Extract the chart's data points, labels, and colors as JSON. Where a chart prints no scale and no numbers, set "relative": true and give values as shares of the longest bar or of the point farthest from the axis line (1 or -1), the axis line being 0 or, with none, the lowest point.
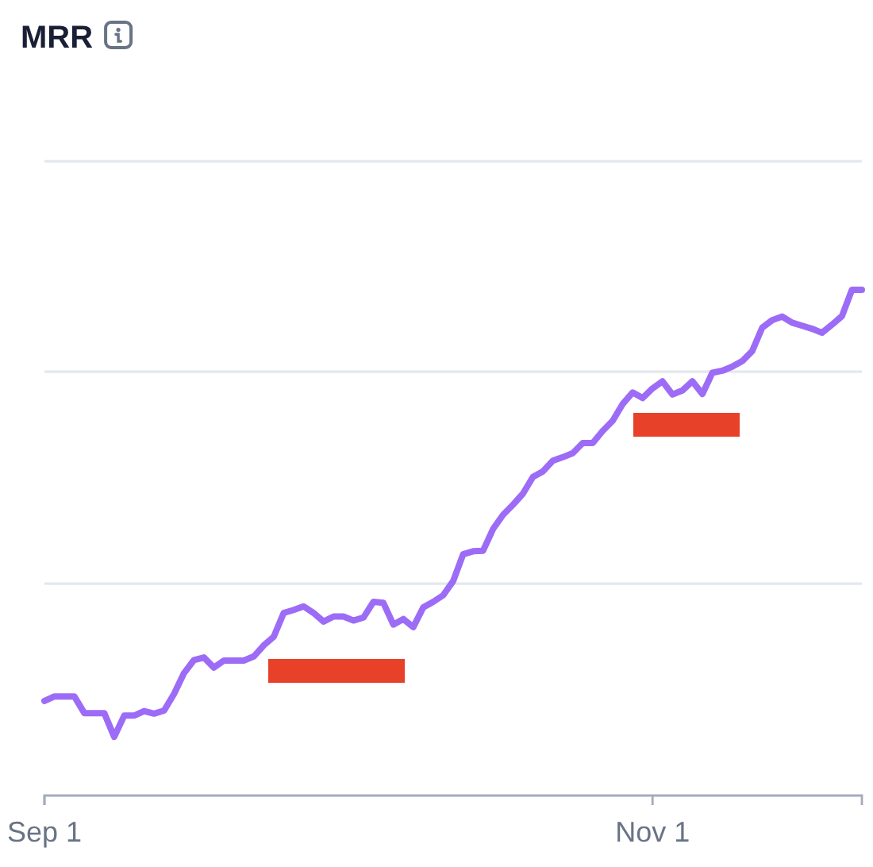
{
  "chart_data": {
    "type": "line",
    "title": "MRR",
    "relative": true,
    "tick_labels": "x",
    "xlim": [
      "--09-01",
      "--11-22"
    ],
    "xticks": [
      {
        "value": "--09-01",
        "label": "Sep 1"
      },
      {
        "value": "--11-01",
        "label": "Nov 1"
      }
    ],
    "ref_lines": [
      {
        "axis": "y",
        "value": 0.419,
        "color": "#e3e8ee"
      },
      {
        "axis": "y",
        "value": 0.838,
        "color": "#e3e8ee"
      },
      {
        "axis": "y",
        "value": 1.254,
        "color": "#e3e8ee"
      }
    ],
    "x": [
      "--09-01",
      "--09-02",
      "--09-03",
      "--09-04",
      "--09-05",
      "--09-06",
      "--09-07",
      "--09-08",
      "--09-09",
      "--09-10",
      "--09-11",
      "--09-12",
      "--09-13",
      "--09-14",
      "--09-15",
      "--09-16",
      "--09-17",
      "--09-18",
      "--09-19",
      "--09-20",
      "--09-21",
      "--09-22",
      "--09-23",
      "--09-24",
      "--09-25",
      "--09-26",
      "--09-27",
      "--09-28",
      "--09-29",
      "--09-30",
      "--10-01",
      "--10-02",
      "--10-03",
      "--10-04",
      "--10-05",
      "--10-06",
      "--10-07",
      "--10-08",
      "--10-09",
      "--10-10",
      "--10-11",
      "--10-12",
      "--10-13",
      "--10-14",
      "--10-15",
      "--10-16",
      "--10-17",
      "--10-18",
      "--10-19",
      "--10-20",
      "--10-21",
      "--10-22",
      "--10-23",
      "--10-24",
      "--10-25",
      "--10-26",
      "--10-27",
      "--10-28",
      "--10-29",
      "--10-30",
      "--10-31",
      "--11-01",
      "--11-02",
      "--11-03",
      "--11-04",
      "--11-05",
      "--11-06",
      "--11-07",
      "--11-08",
      "--11-09",
      "--11-10",
      "--11-11",
      "--11-12",
      "--11-13",
      "--11-14",
      "--11-15",
      "--11-16",
      "--11-17",
      "--11-18",
      "--11-19",
      "--11-20",
      "--11-21",
      "--11-22"
    ],
    "series": [
      {
        "color": "#9c6cf7",
        "values": [
          0.187,
          0.196,
          0.196,
          0.196,
          0.163,
          0.163,
          0.163,
          0.116,
          0.158,
          0.158,
          0.167,
          0.162,
          0.168,
          0.201,
          0.242,
          0.268,
          0.273,
          0.253,
          0.267,
          0.267,
          0.267,
          0.275,
          0.297,
          0.314,
          0.361,
          0.367,
          0.374,
          0.361,
          0.344,
          0.354,
          0.354,
          0.346,
          0.352,
          0.383,
          0.381,
          0.338,
          0.349,
          0.333,
          0.372,
          0.383,
          0.396,
          0.424,
          0.477,
          0.483,
          0.484,
          0.527,
          0.555,
          0.575,
          0.597,
          0.63,
          0.641,
          0.662,
          0.669,
          0.677,
          0.697,
          0.697,
          0.721,
          0.741,
          0.774,
          0.797,
          0.786,
          0.805,
          0.819,
          0.793,
          0.801,
          0.819,
          0.794,
          0.836,
          0.84,
          0.848,
          0.859,
          0.879,
          0.925,
          0.94,
          0.947,
          0.935,
          0.929,
          0.923,
          0.915,
          0.931,
          0.948,
          1,
          1
        ]
      }
    ]
  }
}
